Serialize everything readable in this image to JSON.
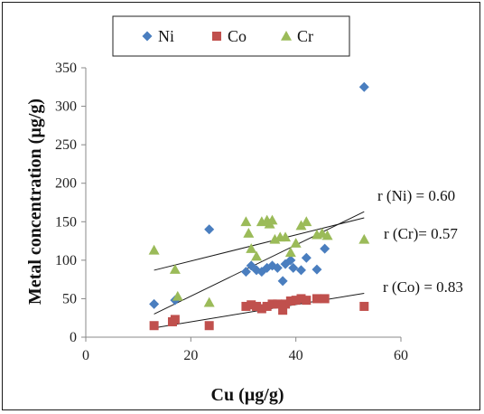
{
  "chart_data": {
    "type": "scatter",
    "xlabel": "Cu (µg/g)",
    "ylabel": "Metal concentration (µg/g)",
    "xlim": [
      0,
      60
    ],
    "ylim": [
      0,
      350
    ],
    "xticks": [
      0,
      20,
      40,
      60
    ],
    "yticks": [
      0,
      50,
      100,
      150,
      200,
      250,
      300,
      350
    ],
    "grid": false,
    "legend": "top",
    "series": [
      {
        "name": "Ni",
        "marker": "diamond",
        "color": "#4a7ebf",
        "x": [
          13,
          17,
          23.5,
          30.5,
          31.5,
          32.5,
          33.5,
          34.5,
          35.5,
          36.5,
          37.5,
          38,
          39,
          39.5,
          41,
          42,
          44,
          45.5,
          53
        ],
        "y": [
          43,
          48,
          140,
          85,
          93,
          87,
          85,
          90,
          93,
          90,
          73,
          95,
          100,
          90,
          87,
          103,
          88,
          115,
          325
        ],
        "trend": {
          "from": [
            13,
            30
          ],
          "to": [
            53,
            163
          ]
        }
      },
      {
        "name": "Co",
        "marker": "square",
        "color": "#c0504d",
        "x": [
          13,
          16.5,
          17,
          23.5,
          30.5,
          31.5,
          32.5,
          33.5,
          34.5,
          35.5,
          36.5,
          37.5,
          38,
          39,
          40,
          41,
          42,
          44,
          45.5,
          53
        ],
        "y": [
          15,
          20,
          23,
          15,
          40,
          42,
          40,
          37,
          40,
          43,
          43,
          35,
          43,
          47,
          48,
          50,
          48,
          50,
          50,
          40
        ],
        "trend": {
          "from": [
            13,
            12
          ],
          "to": [
            53,
            57
          ]
        }
      },
      {
        "name": "Cr",
        "marker": "triangle",
        "color": "#9bbb59",
        "x": [
          13,
          17,
          17.5,
          23.5,
          30.5,
          31,
          31.5,
          32.5,
          33.5,
          34.5,
          35,
          35.5,
          36,
          37,
          38,
          39,
          40,
          41,
          42,
          44,
          45,
          46,
          53
        ],
        "y": [
          113,
          88,
          53,
          45,
          150,
          135,
          115,
          105,
          150,
          152,
          147,
          152,
          127,
          130,
          130,
          110,
          122,
          145,
          150,
          133,
          135,
          132,
          127
        ],
        "trend": {
          "from": [
            13,
            87
          ],
          "to": [
            53,
            155
          ]
        }
      }
    ],
    "annotations": [
      "r (Ni) = 0.60",
      "r (Cr)= 0.57",
      "r (Co) = 0.83"
    ]
  }
}
